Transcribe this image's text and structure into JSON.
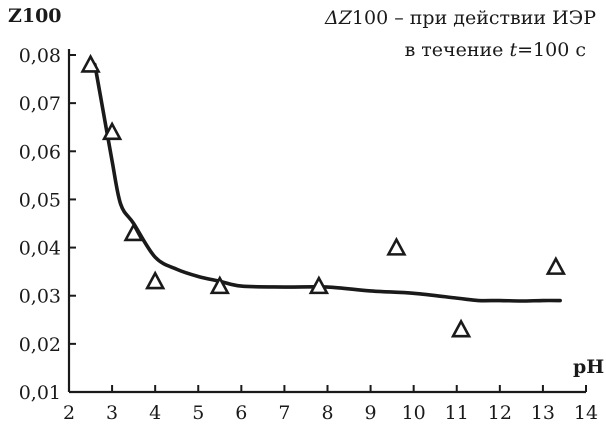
{
  "chart_data": {
    "type": "scatter",
    "ylabel": "Z100",
    "xlabel": "pH",
    "annotation": {
      "line1_symbol": "ΔZ",
      "line1_number": "100",
      "line1_text": " – при действии ИЭР",
      "line2_text": "в течение ",
      "line2_var": "t",
      "line2_value": "=100 с"
    },
    "xlim": [
      2,
      14
    ],
    "ylim": [
      0.01,
      0.08
    ],
    "x_ticks": [
      "2",
      "3",
      "4",
      "5",
      "6",
      "7",
      "8",
      "9",
      "10",
      "11",
      "12",
      "13",
      "14"
    ],
    "y_ticks": [
      "0,01",
      "0,02",
      "0,03",
      "0,04",
      "0,05",
      "0,06",
      "0,07",
      "0,08"
    ],
    "grid": false,
    "series": [
      {
        "marker": "triangle-open",
        "x": [
          2.5,
          3.0,
          3.5,
          4.0,
          5.5,
          7.8,
          9.6,
          11.1,
          13.3
        ],
        "y": [
          0.078,
          0.064,
          0.043,
          0.033,
          0.032,
          0.032,
          0.04,
          0.023,
          0.036
        ]
      },
      {
        "marker": "none",
        "line": "smooth",
        "x": [
          2.6,
          2.8,
          3.0,
          3.2,
          3.5,
          4.0,
          4.5,
          5.0,
          5.5,
          6.0,
          7.0,
          8.0,
          9.0,
          10.0,
          11.0,
          11.5,
          12.0,
          12.5,
          13.0,
          13.4
        ],
        "y": [
          0.078,
          0.068,
          0.058,
          0.049,
          0.045,
          0.038,
          0.0355,
          0.034,
          0.033,
          0.032,
          0.0318,
          0.0318,
          0.031,
          0.0305,
          0.0295,
          0.029,
          0.029,
          0.0289,
          0.029,
          0.029
        ]
      }
    ]
  }
}
